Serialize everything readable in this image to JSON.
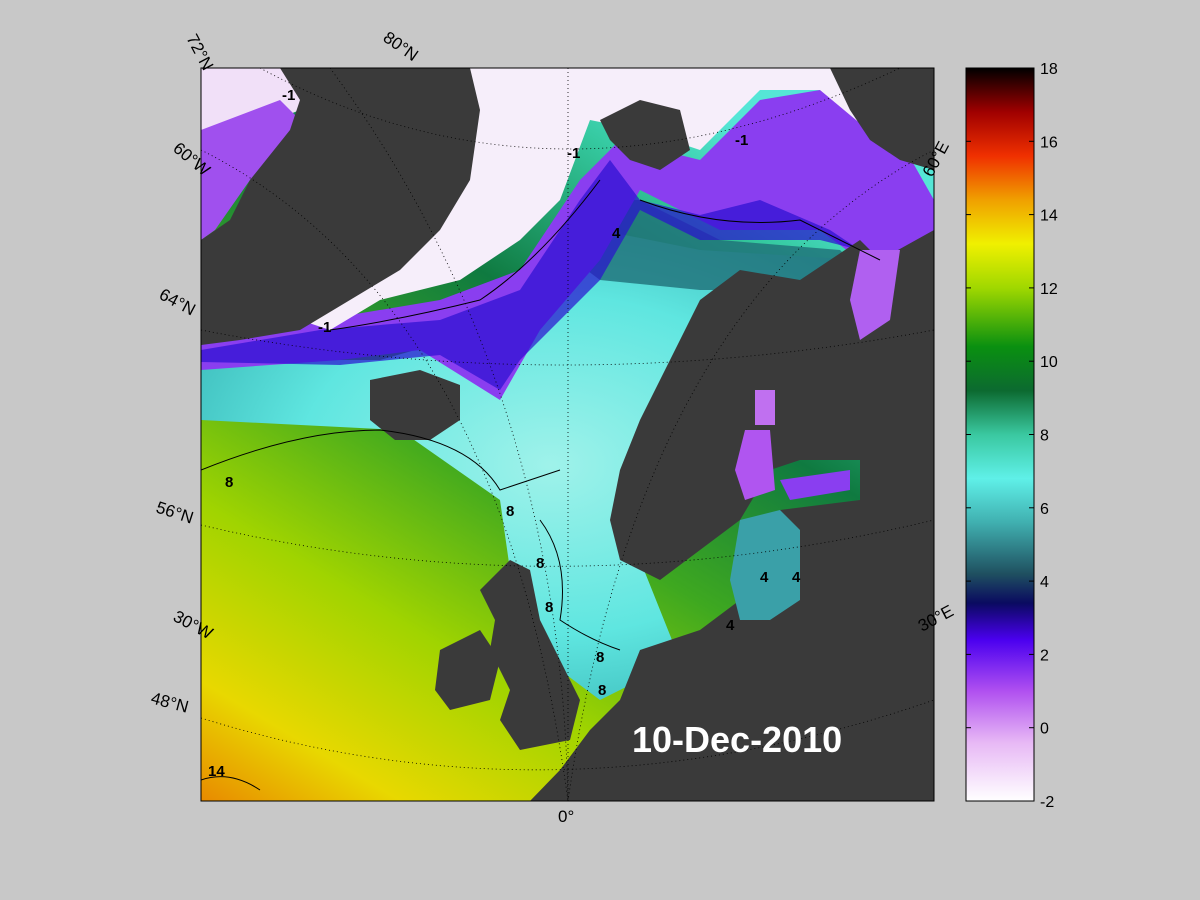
{
  "map": {
    "date": "10-Dec-2010",
    "lat_labels": [
      "72°N",
      "80°N",
      "64°N",
      "56°N",
      "48°N"
    ],
    "lon_labels": [
      "60°W",
      "30°W",
      "0°",
      "30°E",
      "60°E"
    ],
    "contour_labels": [
      "-1",
      "-1",
      "-1",
      "-1",
      "4",
      "8",
      "8",
      "8",
      "8",
      "8",
      "8",
      "14",
      "4",
      "4",
      "4"
    ],
    "colors": {
      "land": "#3a3a3a",
      "background": "#c8c8c8"
    }
  },
  "colorbar": {
    "min": -2,
    "max": 18,
    "ticks": [
      "18",
      "16",
      "14",
      "12",
      "10",
      "8",
      "6",
      "4",
      "2",
      "0",
      "-2"
    ],
    "stops": [
      "#ffffff",
      "#e9b8f5",
      "#a040f0",
      "#3a00e8",
      "#1b1f50",
      "#2f7f80",
      "#60f0e8",
      "#40c090",
      "#0b6e2a",
      "#0f9e12",
      "#80d020",
      "#f0f000",
      "#f0a000",
      "#f05000",
      "#d80000",
      "#600000",
      "#000000"
    ]
  }
}
